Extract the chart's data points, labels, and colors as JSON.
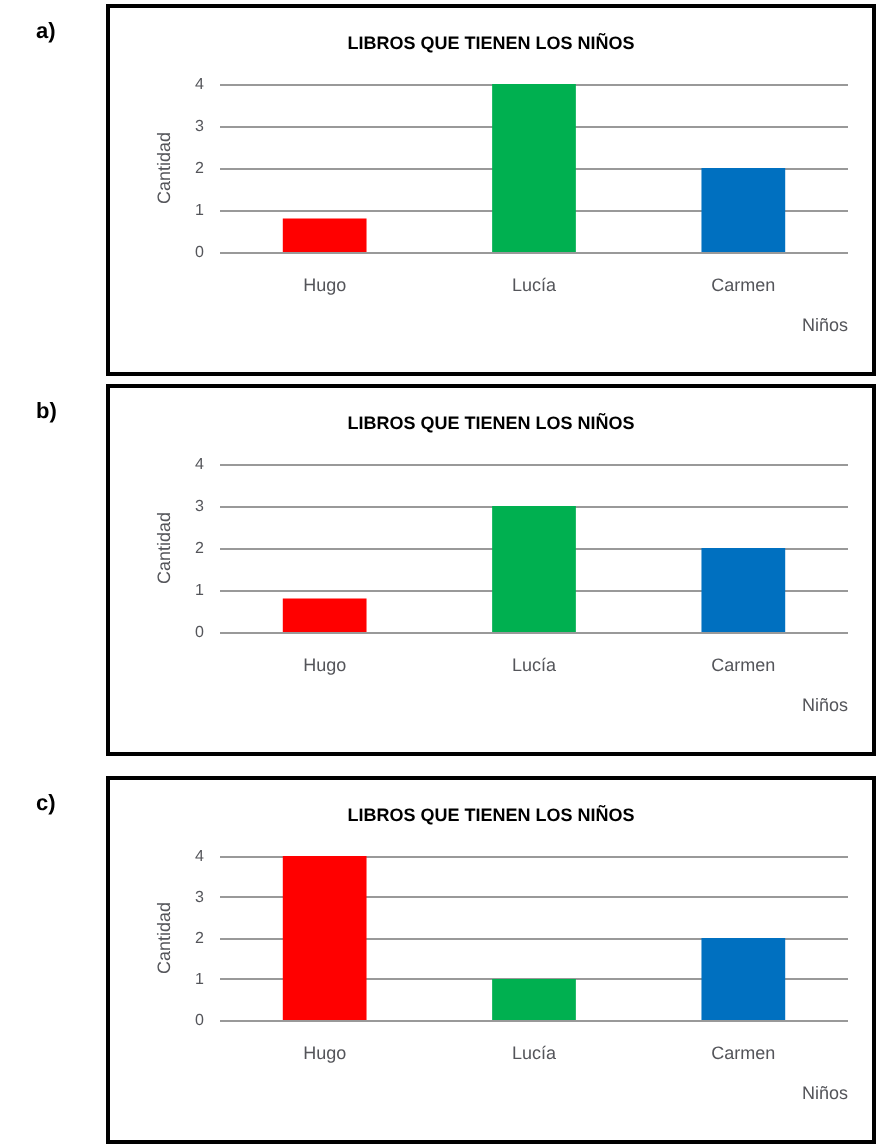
{
  "chart_data": [
    {
      "type": "bar",
      "title": "LIBROS QUE TIENEN LOS NIÑOS",
      "xlabel": "Niños",
      "ylabel": "Cantidad",
      "annotations": [
        "a)"
      ],
      "categories": [
        "Hugo",
        "Lucía",
        "Carmen"
      ],
      "values": [
        0.8,
        4,
        2
      ],
      "colors": [
        "#ff0000",
        "#00b050",
        "#0070c0"
      ],
      "ylim": [
        0,
        4
      ],
      "yticks": [
        0,
        1,
        2,
        3,
        4
      ],
      "grid": "y"
    },
    {
      "type": "bar",
      "title": "LIBROS QUE TIENEN LOS NIÑOS",
      "xlabel": "Niños",
      "ylabel": "Cantidad",
      "annotations": [
        "b)"
      ],
      "categories": [
        "Hugo",
        "Lucía",
        "Carmen"
      ],
      "values": [
        0.8,
        3,
        2
      ],
      "colors": [
        "#ff0000",
        "#00b050",
        "#0070c0"
      ],
      "ylim": [
        0,
        4
      ],
      "yticks": [
        0,
        1,
        2,
        3,
        4
      ],
      "grid": "y"
    },
    {
      "type": "bar",
      "title": "LIBROS QUE TIENEN LOS NIÑOS",
      "xlabel": "Niños",
      "ylabel": "Cantidad",
      "annotations": [
        "c)"
      ],
      "categories": [
        "Hugo",
        "Lucía",
        "Carmen"
      ],
      "values": [
        4,
        1,
        2
      ],
      "colors": [
        "#ff0000",
        "#00b050",
        "#0070c0"
      ],
      "ylim": [
        0,
        4
      ],
      "yticks": [
        0,
        1,
        2,
        3,
        4
      ],
      "grid": "y"
    }
  ]
}
